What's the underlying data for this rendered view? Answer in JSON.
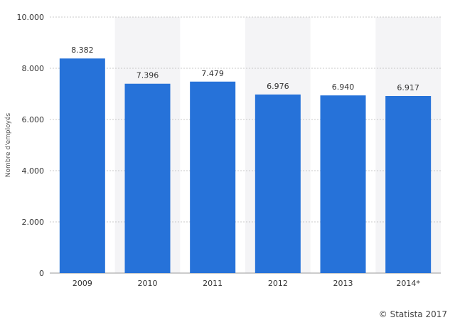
{
  "chart_data": {
    "type": "bar",
    "categories": [
      "2009",
      "2010",
      "2011",
      "2012",
      "2013",
      "2014*"
    ],
    "values": [
      8382,
      7396,
      7479,
      6976,
      6940,
      6917
    ],
    "value_labels": [
      "8.382",
      "7.396",
      "7.479",
      "6.976",
      "6.940",
      "6.917"
    ],
    "ylabel": "Nombre d'employés",
    "ylim": [
      0,
      10000
    ],
    "yticks": [
      0,
      2000,
      4000,
      6000,
      8000,
      10000
    ],
    "ytick_labels": [
      "0",
      "2.000",
      "4.000",
      "6.000",
      "8.000",
      "10.000"
    ],
    "grid": true,
    "bar_color": "#2672d9",
    "alt_band_color": "#f4f4f6"
  },
  "credit": "© Statista 2017"
}
